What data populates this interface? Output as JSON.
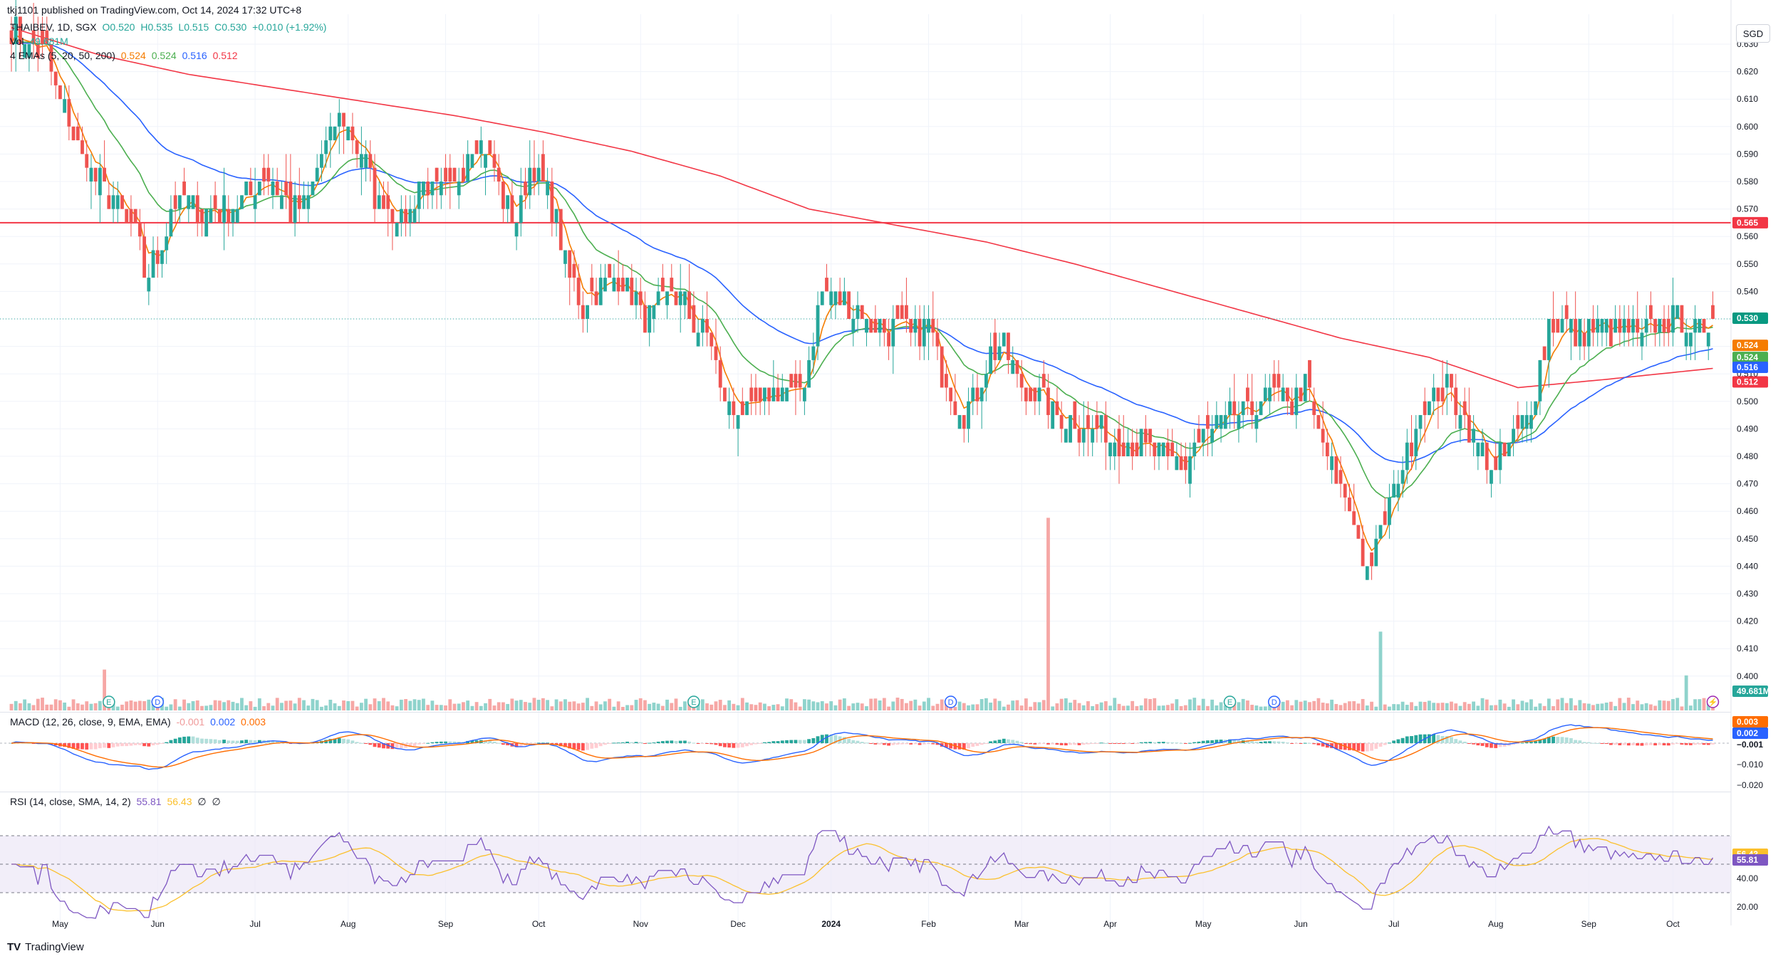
{
  "title": "tkj1101 published on TradingView.com, Oct 14, 2024 17:32 UTC+8",
  "ohlc": {
    "label": "THAIBEV, 1D, SGX",
    "open": "O0.520",
    "high": "H0.535",
    "low": "L0.515",
    "close": "C0.530",
    "change": "+0.010 (+1.92%)"
  },
  "volume_header": {
    "label": "Vol",
    "value": "49.681M"
  },
  "ema_header": {
    "label": "4 EMAs (5, 20, 50, 200)",
    "values": [
      "0.524",
      "0.524",
      "0.516",
      "0.512"
    ]
  },
  "macd_header": {
    "label": "MACD (12, 26, close, 9, EMA, EMA)",
    "values": [
      "-0.001",
      "0.002",
      "0.003"
    ]
  },
  "rsi_header": {
    "label": "RSI (14, close, SMA, 14, 2)",
    "values": [
      "55.81",
      "56.43",
      "∅",
      "∅"
    ]
  },
  "currency": "SGD",
  "brand": "TradingView",
  "colors": {
    "up": "#26a69a",
    "down": "#ef5350",
    "ema5": "#f57c00",
    "ema20": "#4caf50",
    "ema50": "#2962ff",
    "ema200": "#f23645",
    "rsi": "#7e57c2",
    "rsi_ma": "#fbc02d",
    "macd": "#2962ff",
    "signal": "#ff6d00",
    "hline": "#f23645"
  },
  "chart_data": {
    "type": "candlestick",
    "symbol": "THAIBEV",
    "exchange": "SGX",
    "timeframe": "1D",
    "price_axis": {
      "ylim": [
        0.395,
        0.635
      ],
      "ticks": [
        0.4,
        0.41,
        0.42,
        0.43,
        0.44,
        0.45,
        0.46,
        0.47,
        0.48,
        0.49,
        0.5,
        0.51,
        0.52,
        0.53,
        0.54,
        0.55,
        0.56,
        0.57,
        0.58,
        0.59,
        0.6,
        0.61,
        0.62,
        0.63
      ],
      "tick_labels": [
        "0.400",
        "0.410",
        "0.420",
        "0.430",
        "0.440",
        "0.450",
        "0.460",
        "0.470",
        "0.480",
        "0.490",
        "0.500",
        "0.510",
        "0.520",
        "0.530",
        "0.540",
        "0.550",
        "0.560",
        "0.570",
        "0.580",
        "0.590",
        "0.600",
        "0.610",
        "0.620",
        "0.630"
      ]
    },
    "time_axis": {
      "labels": [
        "May",
        "Jun",
        "Jul",
        "Aug",
        "Sep",
        "Oct",
        "Nov",
        "Dec",
        "2024",
        "Feb",
        "Mar",
        "Apr",
        "May",
        "Jun",
        "Jul",
        "Aug",
        "Sep",
        "Oct"
      ],
      "bar_index": [
        11,
        33,
        55,
        76,
        98,
        119,
        142,
        164,
        185,
        207,
        228,
        248,
        269,
        291,
        312,
        335,
        356,
        375
      ]
    },
    "horizontal_line": {
      "value": 0.565,
      "label": "0.565"
    },
    "last_price": {
      "value": 0.53,
      "label": "0.530"
    },
    "ema_last": [
      {
        "name": "EMA 5",
        "value": 0.524,
        "label": "0.524"
      },
      {
        "name": "EMA 20",
        "value": 0.524,
        "label": "0.524"
      },
      {
        "name": "EMA 50",
        "value": 0.516,
        "label": "0.516"
      },
      {
        "name": "EMA 200",
        "value": 0.512,
        "label": "0.512"
      }
    ],
    "close_anchors": [
      [
        0,
        0.635
      ],
      [
        4,
        0.63
      ],
      [
        8,
        0.625
      ],
      [
        12,
        0.605
      ],
      [
        16,
        0.59
      ],
      [
        20,
        0.58
      ],
      [
        24,
        0.572
      ],
      [
        28,
        0.56
      ],
      [
        30,
        0.548
      ],
      [
        33,
        0.55
      ],
      [
        36,
        0.57
      ],
      [
        40,
        0.573
      ],
      [
        44,
        0.568
      ],
      [
        48,
        0.57
      ],
      [
        52,
        0.575
      ],
      [
        55,
        0.578
      ],
      [
        59,
        0.582
      ],
      [
        63,
        0.57
      ],
      [
        67,
        0.575
      ],
      [
        70,
        0.59
      ],
      [
        74,
        0.602
      ],
      [
        76,
        0.598
      ],
      [
        79,
        0.59
      ],
      [
        82,
        0.575
      ],
      [
        86,
        0.57
      ],
      [
        89,
        0.566
      ],
      [
        92,
        0.58
      ],
      [
        96,
        0.575
      ],
      [
        100,
        0.578
      ],
      [
        104,
        0.595
      ],
      [
        108,
        0.59
      ],
      [
        111,
        0.575
      ],
      [
        114,
        0.566
      ],
      [
        117,
        0.585
      ],
      [
        120,
        0.58
      ],
      [
        123,
        0.565
      ],
      [
        126,
        0.545
      ],
      [
        129,
        0.535
      ],
      [
        132,
        0.54
      ],
      [
        136,
        0.545
      ],
      [
        140,
        0.54
      ],
      [
        143,
        0.53
      ],
      [
        146,
        0.535
      ],
      [
        150,
        0.54
      ],
      [
        154,
        0.53
      ],
      [
        158,
        0.52
      ],
      [
        160,
        0.505
      ],
      [
        163,
        0.497
      ],
      [
        166,
        0.495
      ],
      [
        170,
        0.5
      ],
      [
        174,
        0.505
      ],
      [
        177,
        0.5
      ],
      [
        180,
        0.515
      ],
      [
        183,
        0.54
      ],
      [
        186,
        0.537
      ],
      [
        189,
        0.535
      ],
      [
        193,
        0.53
      ],
      [
        197,
        0.525
      ],
      [
        201,
        0.527
      ],
      [
        204,
        0.525
      ],
      [
        207,
        0.528
      ],
      [
        209,
        0.515
      ],
      [
        212,
        0.503
      ],
      [
        215,
        0.495
      ],
      [
        218,
        0.505
      ],
      [
        221,
        0.517
      ],
      [
        224,
        0.52
      ],
      [
        226,
        0.512
      ],
      [
        229,
        0.503
      ],
      [
        233,
        0.5
      ],
      [
        236,
        0.497
      ],
      [
        240,
        0.492
      ],
      [
        244,
        0.49
      ],
      [
        248,
        0.488
      ],
      [
        252,
        0.486
      ],
      [
        256,
        0.484
      ],
      [
        260,
        0.48
      ],
      [
        264,
        0.476
      ],
      [
        268,
        0.485
      ],
      [
        271,
        0.49
      ],
      [
        274,
        0.492
      ],
      [
        277,
        0.495
      ],
      [
        281,
        0.5
      ],
      [
        285,
        0.502
      ],
      [
        289,
        0.5
      ],
      [
        292,
        0.505
      ],
      [
        295,
        0.49
      ],
      [
        298,
        0.475
      ],
      [
        301,
        0.465
      ],
      [
        304,
        0.45
      ],
      [
        306,
        0.44
      ],
      [
        308,
        0.446
      ],
      [
        311,
        0.462
      ],
      [
        314,
        0.478
      ],
      [
        317,
        0.492
      ],
      [
        320,
        0.5
      ],
      [
        323,
        0.505
      ],
      [
        326,
        0.5
      ],
      [
        329,
        0.49
      ],
      [
        332,
        0.48
      ],
      [
        335,
        0.475
      ],
      [
        338,
        0.485
      ],
      [
        341,
        0.492
      ],
      [
        344,
        0.505
      ],
      [
        347,
        0.527
      ],
      [
        350,
        0.53
      ],
      [
        353,
        0.525
      ],
      [
        357,
        0.527
      ],
      [
        361,
        0.525
      ],
      [
        365,
        0.527
      ],
      [
        368,
        0.523
      ],
      [
        371,
        0.529
      ],
      [
        374,
        0.531
      ],
      [
        377,
        0.531
      ],
      [
        380,
        0.527
      ],
      [
        382,
        0.521
      ],
      [
        384,
        0.53
      ]
    ],
    "ema200_anchors": [
      [
        0,
        0.636
      ],
      [
        20,
        0.626
      ],
      [
        40,
        0.619
      ],
      [
        60,
        0.614
      ],
      [
        80,
        0.609
      ],
      [
        100,
        0.604
      ],
      [
        120,
        0.598
      ],
      [
        140,
        0.591
      ],
      [
        160,
        0.582
      ],
      [
        180,
        0.57
      ],
      [
        200,
        0.564
      ],
      [
        220,
        0.558
      ],
      [
        240,
        0.55
      ],
      [
        260,
        0.541
      ],
      [
        280,
        0.532
      ],
      [
        300,
        0.523
      ],
      [
        320,
        0.516
      ],
      [
        340,
        0.505
      ],
      [
        360,
        0.508
      ],
      [
        384,
        0.512
      ]
    ],
    "volume_spikes": [
      {
        "bar": 21,
        "value_m": 70
      },
      {
        "bar": 234,
        "value_m": 330
      },
      {
        "bar": 309,
        "value_m": 135
      },
      {
        "bar": 378,
        "value_m": 60
      }
    ],
    "volume_last": {
      "value": "49.681M"
    },
    "macd": {
      "axis_ticks": [
        0.003,
        0.002,
        -0.001,
        -0.01,
        -0.02
      ],
      "tick_labels": [
        "0.003",
        "0.002",
        "−0.001",
        "−0.010",
        "−0.020"
      ],
      "last": {
        "histogram": -0.001,
        "macd": 0.002,
        "signal": 0.003
      }
    },
    "rsi": {
      "ylim": [
        10,
        90
      ],
      "axis_ticks": [
        20,
        40
      ],
      "tick_labels": [
        "20.00",
        "40.00"
      ],
      "bands": [
        30,
        50,
        70
      ],
      "last": {
        "rsi": 55.81,
        "ma": 56.43
      },
      "last_labels": [
        "55.81",
        "56.43"
      ]
    },
    "event_markers": [
      {
        "bar": 22,
        "kind": "E"
      },
      {
        "bar": 33,
        "kind": "D"
      },
      {
        "bar": 154,
        "kind": "E"
      },
      {
        "bar": 212,
        "kind": "D"
      },
      {
        "bar": 275,
        "kind": "E"
      },
      {
        "bar": 285,
        "kind": "D"
      },
      {
        "bar": 384,
        "kind": "alert"
      }
    ],
    "legend": "top-left",
    "grid": true
  }
}
